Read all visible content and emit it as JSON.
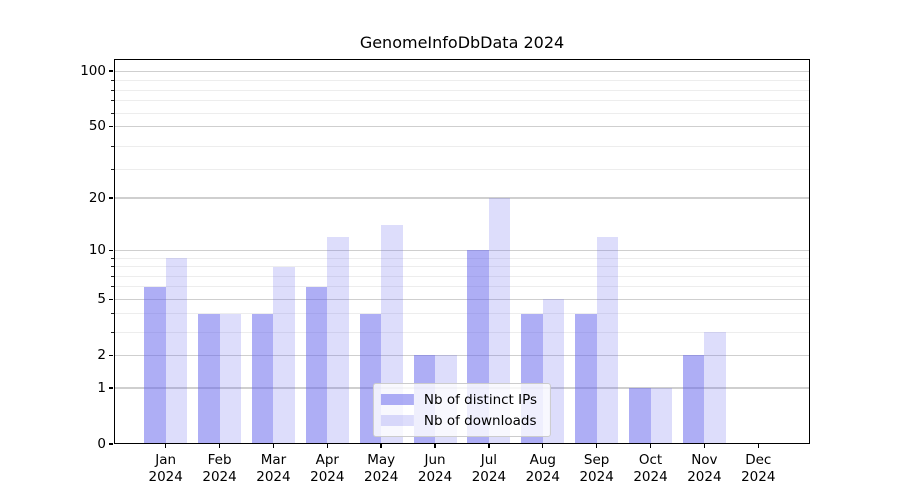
{
  "title": "GenomeInfoDbData 2024",
  "chart_data": {
    "type": "bar",
    "title": "GenomeInfoDbData 2024",
    "categories": [
      "Jan",
      "Feb",
      "Mar",
      "Apr",
      "May",
      "Jun",
      "Jul",
      "Aug",
      "Sep",
      "Oct",
      "Nov",
      "Dec"
    ],
    "year": "2024",
    "series": [
      {
        "name": "Nb of distinct IPs",
        "color": "rgba(100,100,235,0.52)",
        "values": [
          6,
          4,
          4,
          6,
          4,
          2,
          10,
          4,
          4,
          1,
          2,
          0
        ]
      },
      {
        "name": "Nb of downloads",
        "color": "rgba(100,100,235,0.22)",
        "values": [
          9,
          4,
          8,
          12,
          14,
          2,
          20,
          5,
          12,
          1,
          3,
          0
        ]
      }
    ],
    "y_axis": {
      "scale": "log10(1+v)",
      "tick_values": [
        0,
        1,
        2,
        5,
        10,
        20,
        50,
        100
      ],
      "tick_labels": [
        "0",
        "1",
        "2",
        "5",
        "10",
        "20",
        "50",
        "100"
      ],
      "minor_tick_values": [
        3,
        4,
        6,
        7,
        8,
        9,
        29,
        39,
        59,
        69,
        79,
        89
      ],
      "ylim": [
        0,
        114
      ]
    },
    "legend": {
      "position": "lower center"
    },
    "grid": true,
    "colors": {
      "bar_distinct_ips": "#a9a9f3",
      "bar_downloads": "#dcdcfa",
      "gridline_major": "#cfcfcf",
      "gridline_minor": "#ededed",
      "axis": "#000000",
      "background": "#ffffff"
    }
  }
}
